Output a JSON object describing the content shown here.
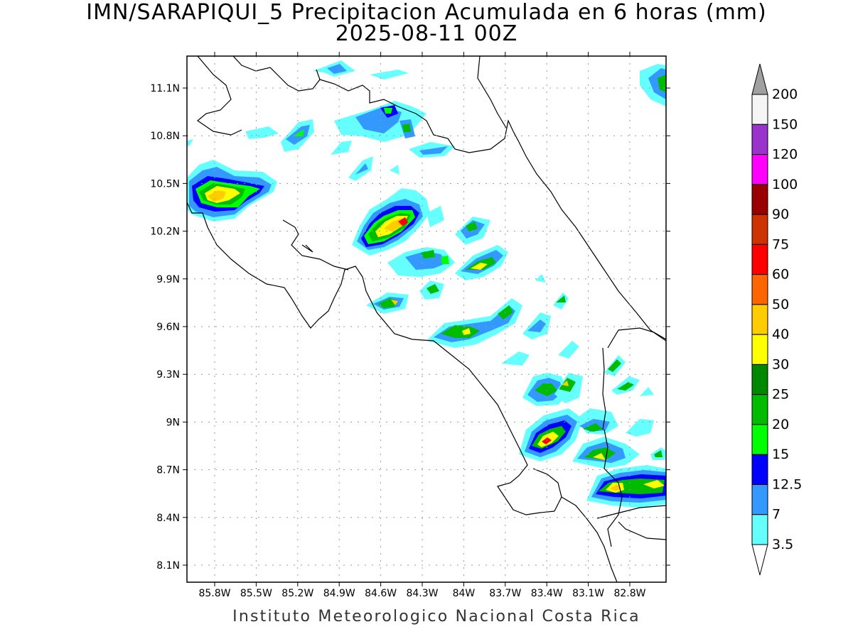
{
  "title": {
    "line1": "IMN/SARAPIQUI_5 Precipitacion Acumulada en 6 horas (mm)",
    "line2": "2025-08-11 00Z"
  },
  "footer": "Instituto Meteorologico Nacional Costa Rica",
  "map": {
    "lat_ticks": [
      "11.1N",
      "10.8N",
      "10.5N",
      "10.2N",
      "9.9N",
      "9.6N",
      "9.3N",
      "9N",
      "8.7N",
      "8.4N",
      "8.1N"
    ],
    "lon_ticks": [
      "85.8W",
      "85.5W",
      "85.2W",
      "84.9W",
      "84.6W",
      "84.3W",
      "84W",
      "83.7W",
      "83.4W",
      "83.1W",
      "82.8W"
    ],
    "grid": "dotted",
    "units": "mm"
  },
  "colorbar": {
    "labels": [
      "200",
      "150",
      "120",
      "100",
      "90",
      "75",
      "60",
      "50",
      "40",
      "30",
      "25",
      "20",
      "15",
      "12.5",
      "7",
      "3.5"
    ],
    "colors": [
      "#f5f5f5",
      "#9933cc",
      "#ff00ff",
      "#990000",
      "#cc3300",
      "#ff0000",
      "#ff6600",
      "#ffcc00",
      "#ffff00",
      "#008800",
      "#00bb00",
      "#00ff00",
      "#0000ff",
      "#3399ff",
      "#66ffff"
    ],
    "top_arrow_color": "#a0a0a0",
    "bottom_arrow_color": "#ffffff"
  }
}
